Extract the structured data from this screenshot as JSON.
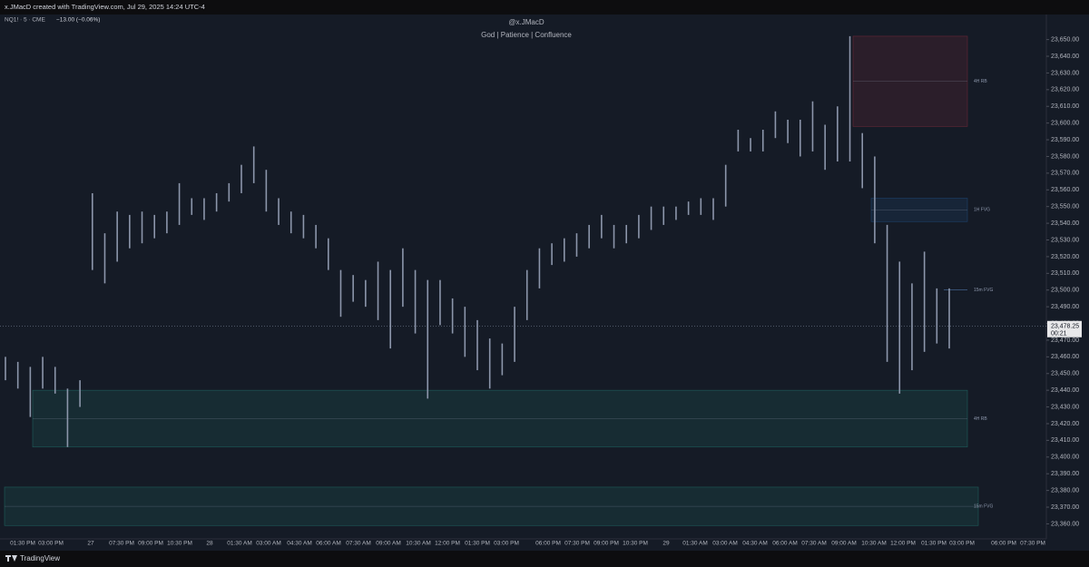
{
  "header": {
    "credit": "x.JMacD created with TradingView.com, Jul 29, 2025 14:24 UTC-4"
  },
  "legend": {
    "symbol": "NQ1! · 5 · CME",
    "change": "−13.00 (−0.06%)"
  },
  "watermark": {
    "author": "@x.JMacD",
    "motto": "God | Patience | Confluence"
  },
  "footer": {
    "brand": "TradingView"
  },
  "chart_data": {
    "type": "ohlc_bars",
    "color": "#8c96ab",
    "high": [
      23460,
      23457,
      23454,
      23460,
      23454,
      23441,
      23446,
      23558,
      23534,
      23547,
      23545,
      23547,
      23545,
      23547,
      23564,
      23555,
      23555,
      23558,
      23564,
      23575,
      23586,
      23572,
      23555,
      23547,
      23545,
      23539,
      23531,
      23512,
      23509,
      23506,
      23517,
      23512,
      23525,
      23512,
      23506,
      23506,
      23495,
      23490,
      23482,
      23471,
      23468,
      23490,
      23512,
      23525,
      23528,
      23531,
      23534,
      23539,
      23545,
      23539,
      23539,
      23545,
      23550,
      23550,
      23550,
      23553,
      23555,
      23555,
      23575,
      23596,
      23591,
      23596,
      23607,
      23602,
      23602,
      23613,
      23599,
      23610,
      23652,
      23594,
      23580,
      23539,
      23517,
      23504,
      23523,
      23501,
      23501
    ],
    "low": [
      23446,
      23441,
      23424,
      23441,
      23438,
      23406,
      23430,
      23512,
      23504,
      23517,
      23525,
      23528,
      23531,
      23534,
      23539,
      23545,
      23542,
      23547,
      23553,
      23558,
      23564,
      23547,
      23539,
      23534,
      23531,
      23525,
      23512,
      23484,
      23493,
      23490,
      23482,
      23465,
      23490,
      23474,
      23435,
      23479,
      23474,
      23460,
      23452,
      23441,
      23449,
      23457,
      23482,
      23501,
      23515,
      23517,
      23520,
      23525,
      23531,
      23525,
      23528,
      23531,
      23536,
      23539,
      23542,
      23545,
      23545,
      23542,
      23550,
      23583,
      23583,
      23583,
      23591,
      23588,
      23580,
      23583,
      23572,
      23577,
      23577,
      23561,
      23528,
      23457,
      23438,
      23452,
      23463,
      23468,
      23465
    ],
    "ylim": [
      23351,
      23665
    ],
    "yticks": [
      {
        "value": 23650,
        "label": "23,650.00"
      },
      {
        "value": 23640,
        "label": "23,640.00"
      },
      {
        "value": 23630,
        "label": "23,630.00"
      },
      {
        "value": 23620,
        "label": "23,620.00"
      },
      {
        "value": 23610,
        "label": "23,610.00"
      },
      {
        "value": 23600,
        "label": "23,600.00"
      },
      {
        "value": 23590,
        "label": "23,590.00"
      },
      {
        "value": 23580,
        "label": "23,580.00"
      },
      {
        "value": 23570,
        "label": "23,570.00"
      },
      {
        "value": 23560,
        "label": "23,560.00"
      },
      {
        "value": 23550,
        "label": "23,550.00"
      },
      {
        "value": 23540,
        "label": "23,540.00"
      },
      {
        "value": 23530,
        "label": "23,530.00"
      },
      {
        "value": 23520,
        "label": "23,520.00"
      },
      {
        "value": 23510,
        "label": "23,510.00"
      },
      {
        "value": 23500,
        "label": "23,500.00"
      },
      {
        "value": 23490,
        "label": "23,490.00"
      },
      {
        "value": 23480,
        "label": "23,480.00"
      },
      {
        "value": 23470,
        "label": "23,470.00"
      },
      {
        "value": 23460,
        "label": "23,460.00"
      },
      {
        "value": 23450,
        "label": "23,450.00"
      },
      {
        "value": 23440,
        "label": "23,440.00"
      },
      {
        "value": 23430,
        "label": "23,430.00"
      },
      {
        "value": 23420,
        "label": "23,420.00"
      },
      {
        "value": 23410,
        "label": "23,410.00"
      },
      {
        "value": 23400,
        "label": "23,400.00"
      },
      {
        "value": 23390,
        "label": "23,390.00"
      },
      {
        "value": 23380,
        "label": "23,380.00"
      },
      {
        "value": 23370,
        "label": "23,370.00"
      },
      {
        "value": 23360,
        "label": "23,360.00"
      }
    ],
    "time_labels": [
      "01:30 PM",
      "03:00 PM",
      "27",
      "07:30 PM",
      "09:00 PM",
      "10:30 PM",
      "28",
      "01:30 AM",
      "03:00 AM",
      "04:30 AM",
      "06:00 AM",
      "07:30 AM",
      "09:00 AM",
      "10:30 AM",
      "12:00 PM",
      "01:30 PM",
      "03:00 PM",
      "06:00 PM",
      "07:30 PM",
      "09:00 PM",
      "10:30 PM",
      "29",
      "01:30 AM",
      "03:00 AM",
      "04:30 AM",
      "06:00 AM",
      "07:30 AM",
      "09:00 AM",
      "10:30 AM",
      "12:00 PM",
      "01:30 PM",
      "03:00 PM",
      "06:00 PM",
      "07:30 PM"
    ],
    "zones": [
      {
        "label": "4H RB",
        "top": 23652,
        "bottom": 23598,
        "color": "#7a2a3a"
      },
      {
        "label": "1H FVG",
        "top": 23555,
        "bottom": 23541,
        "color": "#1f4a7a"
      },
      {
        "label": "15m FVG",
        "top": 23500,
        "bottom": 23500,
        "color": "#1f4a7a"
      },
      {
        "label": "4H RB",
        "top": 23440,
        "bottom": 23406,
        "color": "#1f6a66"
      },
      {
        "label": "15m FVG",
        "top": 23382,
        "bottom": 23359,
        "color": "#1f6a66"
      }
    ],
    "last_price": {
      "value": 23478.25,
      "label": "23,478.25",
      "countdown": "00:21"
    }
  }
}
